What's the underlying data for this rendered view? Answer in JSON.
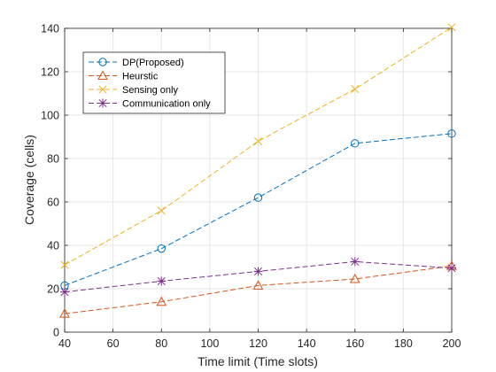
{
  "chart_data": {
    "type": "line",
    "title": "",
    "xlabel": "Time limit (Time slots)",
    "ylabel": "Coverage (cells)",
    "x": [
      40,
      80,
      120,
      160,
      200
    ],
    "xlim": [
      40,
      200
    ],
    "ylim": [
      0,
      140
    ],
    "xticks": [
      40,
      60,
      80,
      100,
      120,
      140,
      160,
      180,
      200
    ],
    "yticks": [
      0,
      20,
      40,
      60,
      80,
      100,
      120,
      140
    ],
    "grid": true,
    "legend_position": "top-left",
    "series": [
      {
        "name": "DP(Proposed)",
        "values": [
          21.5,
          38.5,
          62,
          87,
          91.5
        ],
        "color": "#0072BD",
        "marker": "circle",
        "line": "dashed"
      },
      {
        "name": "Heurstic",
        "values": [
          8.5,
          14,
          21.5,
          24.5,
          30.5
        ],
        "color": "#D95319",
        "marker": "triangle",
        "line": "dashed"
      },
      {
        "name": "Sensing only",
        "values": [
          31,
          56,
          88,
          112,
          140.5
        ],
        "color": "#EDB120",
        "marker": "x",
        "line": "dashed"
      },
      {
        "name": "Communication only",
        "values": [
          18.5,
          23.5,
          28,
          32.5,
          29.5
        ],
        "color": "#7E2F8E",
        "marker": "star",
        "line": "dashed"
      }
    ]
  }
}
